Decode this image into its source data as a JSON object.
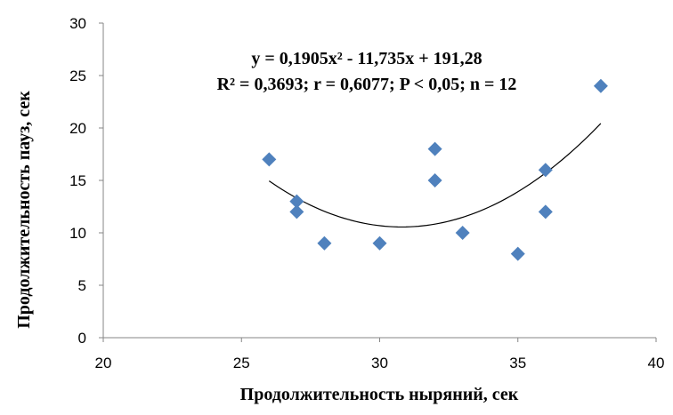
{
  "chart_data": {
    "type": "scatter",
    "xlabel": "Продолжительность ныряний, сек",
    "ylabel": "Продолжительность пауз, сек",
    "xlim": [
      20,
      40
    ],
    "ylim": [
      0,
      30
    ],
    "x_ticks": [
      "20",
      "25",
      "30",
      "35",
      "40"
    ],
    "y_ticks": [
      "0",
      "5",
      "10",
      "15",
      "20",
      "25",
      "30"
    ],
    "points": [
      {
        "x": 26,
        "y": 17
      },
      {
        "x": 27,
        "y": 13
      },
      {
        "x": 27,
        "y": 12
      },
      {
        "x": 28,
        "y": 9
      },
      {
        "x": 30,
        "y": 9
      },
      {
        "x": 32,
        "y": 18
      },
      {
        "x": 32,
        "y": 15
      },
      {
        "x": 33,
        "y": 10
      },
      {
        "x": 35,
        "y": 8
      },
      {
        "x": 36,
        "y": 16
      },
      {
        "x": 36,
        "y": 12
      },
      {
        "x": 38,
        "y": 24
      }
    ],
    "trendline": {
      "type": "polynomial",
      "coefficients": [
        0.1905,
        -11.735,
        191.28
      ],
      "x_range": [
        26,
        38
      ]
    },
    "annotations": [
      "y = 0,1905x² - 11,735x + 191,28",
      "R² = 0,3693; r = 0,6077; P < 0,05; n = 12"
    ],
    "grid": false,
    "legend": "none",
    "marker_color": "#4F81BD",
    "trendline_color": "#000000"
  }
}
